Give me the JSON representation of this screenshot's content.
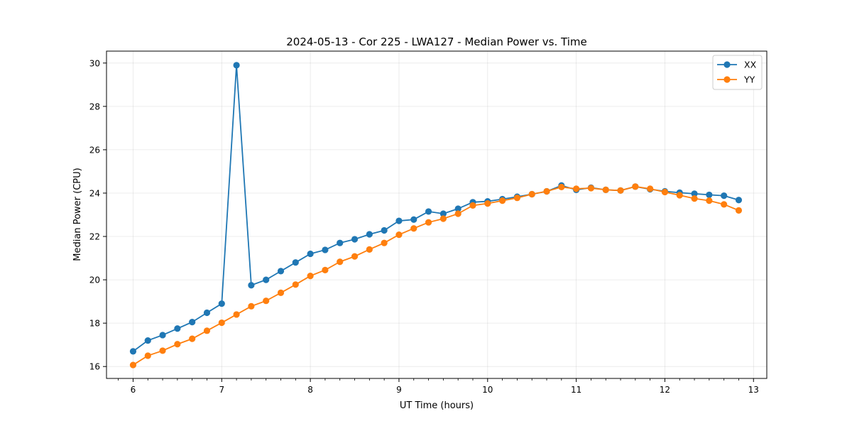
{
  "chart_data": {
    "type": "line",
    "title": "2024-05-13 - Cor 225 - LWA127 - Median Power vs. Time",
    "xlabel": "UT Time (hours)",
    "ylabel": "Median Power (CPU)",
    "xlim": [
      5.7,
      13.15
    ],
    "ylim": [
      15.45,
      30.55
    ],
    "xticks": [
      6,
      7,
      8,
      9,
      10,
      11,
      12,
      13
    ],
    "yticks": [
      16,
      18,
      20,
      22,
      24,
      26,
      28,
      30
    ],
    "grid": true,
    "legend_position": "top-right",
    "x": [
      6.0,
      6.1667,
      6.3333,
      6.5,
      6.6667,
      6.8333,
      7.0,
      7.1667,
      7.3333,
      7.5,
      7.6667,
      7.8333,
      8.0,
      8.1667,
      8.3333,
      8.5,
      8.6667,
      8.8333,
      9.0,
      9.1667,
      9.3333,
      9.5,
      9.6667,
      9.8333,
      10.0,
      10.1667,
      10.3333,
      10.5,
      10.6667,
      10.8333,
      11.0,
      11.1667,
      11.3333,
      11.5,
      11.6667,
      11.8333,
      12.0,
      12.1667,
      12.3333,
      12.5,
      12.6667,
      12.8333
    ],
    "series": [
      {
        "name": "XX",
        "color": "#1f77b4",
        "values": [
          16.7,
          17.2,
          17.45,
          17.75,
          18.05,
          18.48,
          18.9,
          29.9,
          19.75,
          20.0,
          20.4,
          20.8,
          21.2,
          21.38,
          21.7,
          21.87,
          22.1,
          22.28,
          22.72,
          22.78,
          23.15,
          23.05,
          23.28,
          23.58,
          23.62,
          23.72,
          23.83,
          23.95,
          24.08,
          24.35,
          24.15,
          24.25,
          24.15,
          24.12,
          24.3,
          24.18,
          24.08,
          24.02,
          23.97,
          23.92,
          23.88,
          23.68
        ]
      },
      {
        "name": "YY",
        "color": "#ff7f0e",
        "values": [
          16.07,
          16.5,
          16.73,
          17.03,
          17.28,
          17.65,
          18.02,
          18.4,
          18.78,
          19.03,
          19.4,
          19.78,
          20.18,
          20.45,
          20.83,
          21.08,
          21.4,
          21.7,
          22.08,
          22.37,
          22.65,
          22.82,
          23.05,
          23.43,
          23.52,
          23.65,
          23.78,
          23.95,
          24.08,
          24.28,
          24.2,
          24.23,
          24.15,
          24.12,
          24.3,
          24.2,
          24.05,
          23.9,
          23.75,
          23.65,
          23.48,
          23.2
        ]
      }
    ]
  }
}
